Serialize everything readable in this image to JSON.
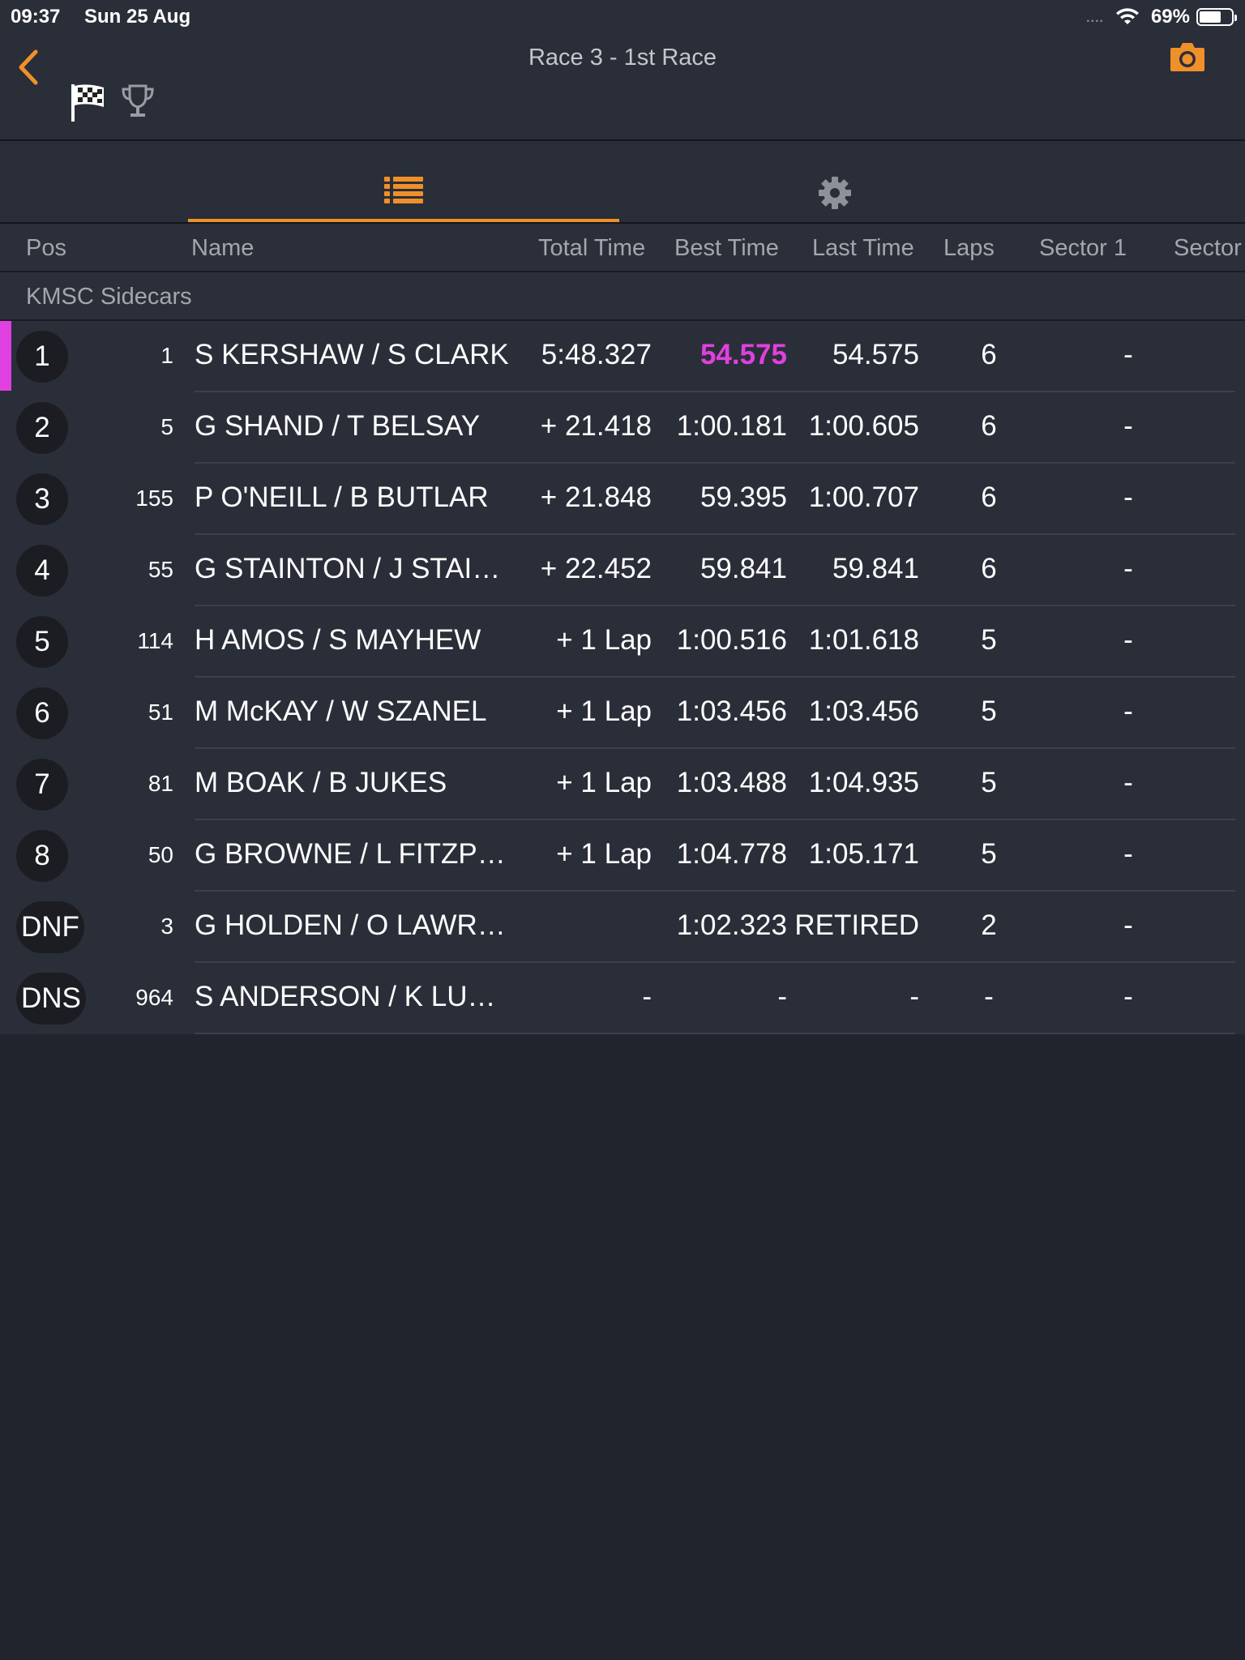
{
  "status": {
    "time": "09:37",
    "date": "Sun 25 Aug",
    "dots": "....",
    "battery_pct": "69%",
    "battery_level": 0.69
  },
  "header": {
    "title": "Race 3 - 1st Race",
    "accent_color": "#f0902a"
  },
  "columns": {
    "pos": "Pos",
    "name": "Name",
    "total": "Total Time",
    "best": "Best Time",
    "last": "Last Time",
    "laps": "Laps",
    "sector1": "Sector 1",
    "sector2": "Sector"
  },
  "class_name": "KMSC Sidecars",
  "highlight_color": "#e040e0",
  "rows": [
    {
      "pos": "1",
      "num": "1",
      "name": "S KERSHAW / S CLARK",
      "total": "5:48.327",
      "best": "54.575",
      "last": "54.575",
      "laps": "6",
      "s1": "-",
      "fastest": true
    },
    {
      "pos": "2",
      "num": "5",
      "name": "G SHAND / T BELSAY",
      "total": "+ 21.418",
      "best": "1:00.181",
      "last": "1:00.605",
      "laps": "6",
      "s1": "-"
    },
    {
      "pos": "3",
      "num": "155",
      "name": "P O'NEILL / B BUTLAR",
      "total": "+ 21.848",
      "best": "59.395",
      "last": "1:00.707",
      "laps": "6",
      "s1": "-"
    },
    {
      "pos": "4",
      "num": "55",
      "name": "G STAINTON / J STAI…",
      "total": "+ 22.452",
      "best": "59.841",
      "last": "59.841",
      "laps": "6",
      "s1": "-"
    },
    {
      "pos": "5",
      "num": "114",
      "name": "H AMOS / S MAYHEW",
      "total": "+ 1 Lap",
      "best": "1:00.516",
      "last": "1:01.618",
      "laps": "5",
      "s1": "-"
    },
    {
      "pos": "6",
      "num": "51",
      "name": "M McKAY / W SZANEL",
      "total": "+ 1 Lap",
      "best": "1:03.456",
      "last": "1:03.456",
      "laps": "5",
      "s1": "-"
    },
    {
      "pos": "7",
      "num": "81",
      "name": "M BOAK / B JUKES",
      "total": "+ 1 Lap",
      "best": "1:03.488",
      "last": "1:04.935",
      "laps": "5",
      "s1": "-"
    },
    {
      "pos": "8",
      "num": "50",
      "name": "G BROWNE / L FITZP…",
      "total": "+ 1 Lap",
      "best": "1:04.778",
      "last": "1:05.171",
      "laps": "5",
      "s1": "-"
    },
    {
      "pos": "DNF",
      "num": "3",
      "name": "G HOLDEN / O LAWR…",
      "total": "",
      "best": "1:02.323",
      "last": "RETIRED",
      "laps": "2",
      "s1": "-"
    },
    {
      "pos": "DNS",
      "num": "964",
      "name": "S ANDERSON /  K LU…",
      "total": "-",
      "best": "-",
      "last": "-",
      "laps": "-",
      "s1": "-"
    }
  ]
}
